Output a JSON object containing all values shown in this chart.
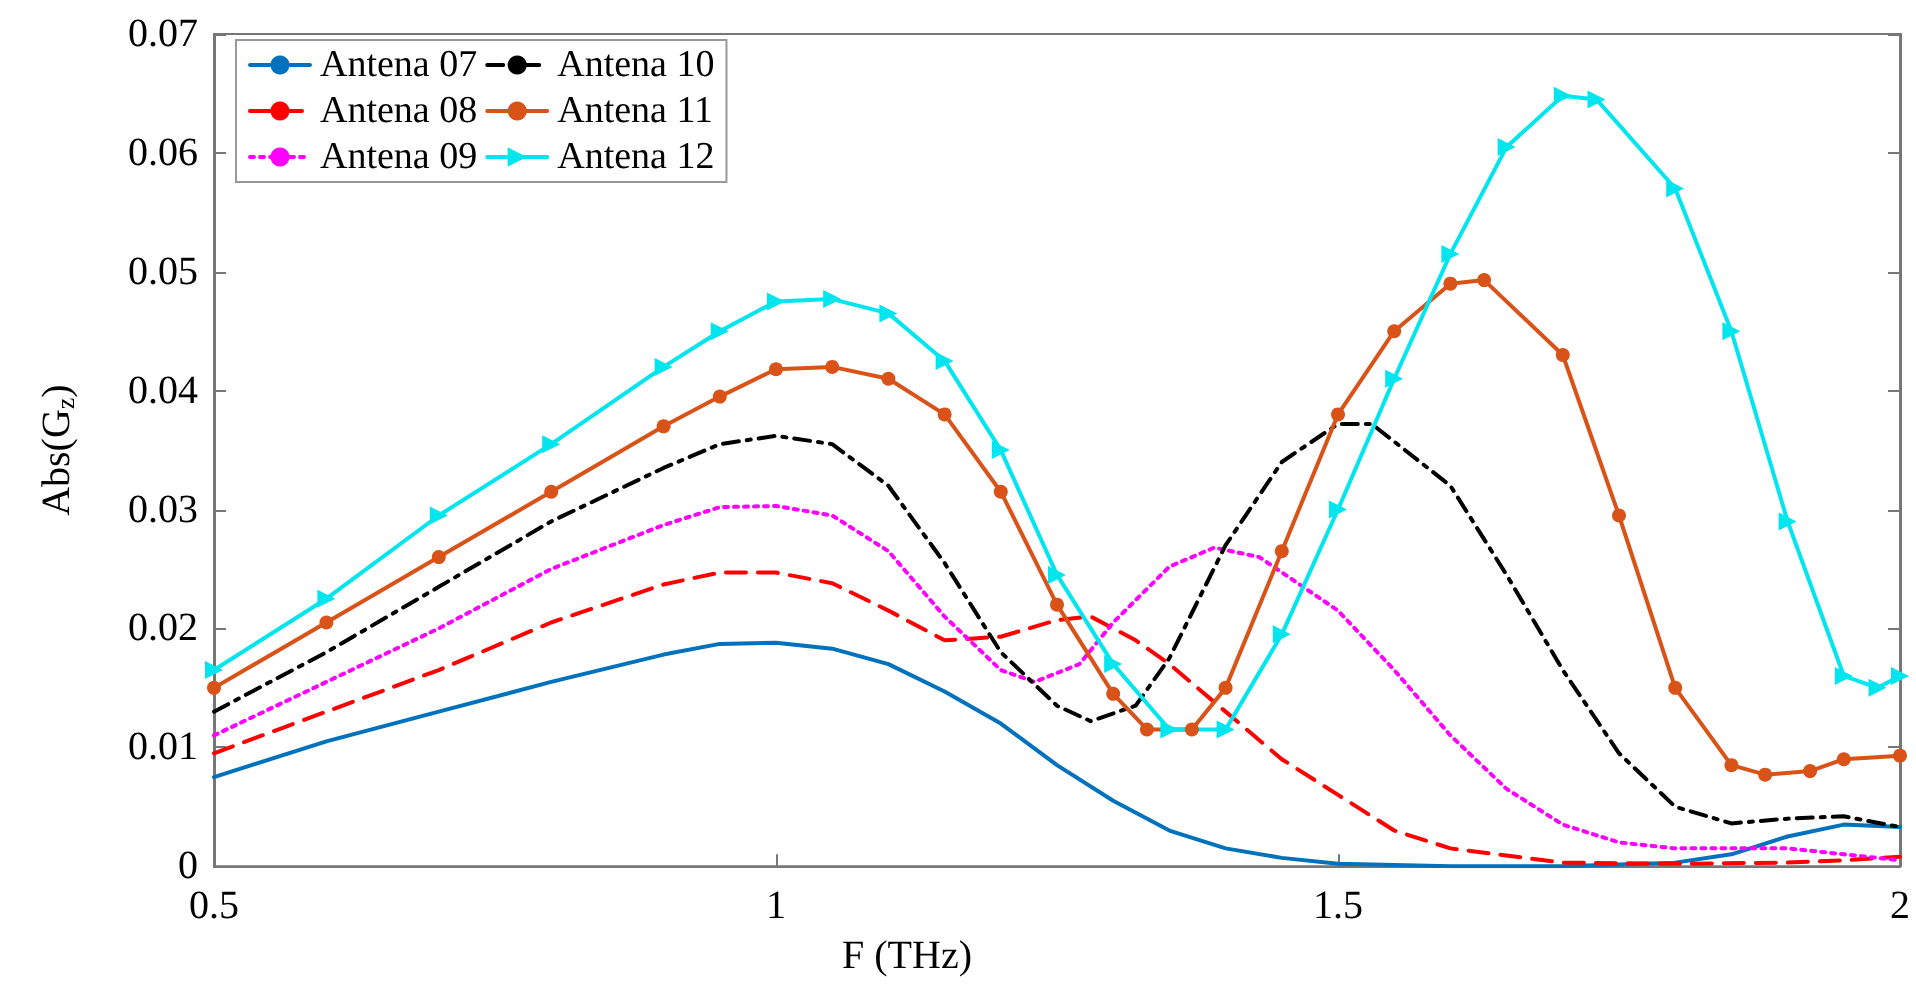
{
  "chart_data": {
    "type": "line",
    "xlabel": "F (THz)",
    "ylabel": "Abs(G$_{z}$)",
    "xlim": [
      0.5,
      2
    ],
    "xticks": [
      0.5,
      1,
      1.5,
      2
    ],
    "ylim": [
      0,
      0.07
    ],
    "yticks": [
      0,
      0.01,
      0.02,
      0.03,
      0.04,
      0.05,
      0.06,
      0.07
    ],
    "grid": false,
    "legend": "top left",
    "series": [
      {
        "name": "Antena 07",
        "color": "#0072bd",
        "line_style": "solid",
        "marker": "none",
        "x": [
          0.5,
          0.6,
          0.7,
          0.8,
          0.9,
          0.95,
          1.0,
          1.05,
          1.1,
          1.15,
          1.2,
          1.25,
          1.3,
          1.35,
          1.4,
          1.45,
          1.5,
          1.6,
          1.7,
          1.8,
          1.85,
          1.9,
          1.95,
          2.0
        ],
        "values": [
          0.0075,
          0.0105,
          0.013,
          0.0155,
          0.0178,
          0.0187,
          0.0188,
          0.0183,
          0.017,
          0.0147,
          0.012,
          0.0085,
          0.0055,
          0.003,
          0.0015,
          0.0007,
          0.0002,
          0,
          0,
          0.0003,
          0.001,
          0.0025,
          0.0035,
          0.0033
        ]
      },
      {
        "name": "Antena 08",
        "color": "#ff0000",
        "line_style": "dashed",
        "marker": "none",
        "x": [
          0.5,
          0.6,
          0.7,
          0.8,
          0.9,
          0.95,
          1.0,
          1.05,
          1.1,
          1.15,
          1.2,
          1.25,
          1.28,
          1.32,
          1.35,
          1.4,
          1.45,
          1.5,
          1.55,
          1.6,
          1.7,
          1.8,
          1.9,
          1.95,
          2.0
        ],
        "values": [
          0.0095,
          0.013,
          0.0165,
          0.0205,
          0.0237,
          0.0247,
          0.0247,
          0.0238,
          0.0215,
          0.019,
          0.0193,
          0.0207,
          0.021,
          0.019,
          0.017,
          0.013,
          0.009,
          0.006,
          0.003,
          0.0015,
          0.0003,
          0.0002,
          0.0003,
          0.0005,
          0.0008
        ]
      },
      {
        "name": "Antena 09",
        "color": "#ff00ff",
        "line_style": "dotted",
        "marker": "none",
        "x": [
          0.5,
          0.6,
          0.7,
          0.8,
          0.9,
          0.95,
          1.0,
          1.05,
          1.1,
          1.15,
          1.2,
          1.23,
          1.27,
          1.3,
          1.35,
          1.39,
          1.43,
          1.5,
          1.55,
          1.6,
          1.65,
          1.7,
          1.75,
          1.8,
          1.85,
          1.9,
          1.95,
          2.0
        ],
        "values": [
          0.011,
          0.0155,
          0.02,
          0.025,
          0.0287,
          0.0302,
          0.0303,
          0.0295,
          0.0265,
          0.021,
          0.0165,
          0.0155,
          0.017,
          0.0205,
          0.0252,
          0.0268,
          0.026,
          0.0215,
          0.0165,
          0.011,
          0.0065,
          0.0035,
          0.002,
          0.0015,
          0.0015,
          0.0015,
          0.001,
          0.0005
        ]
      },
      {
        "name": "Antena 10",
        "color": "#000000",
        "line_style": "dashdot",
        "marker": "none",
        "x": [
          0.5,
          0.6,
          0.7,
          0.8,
          0.9,
          0.95,
          1.0,
          1.05,
          1.1,
          1.15,
          1.2,
          1.25,
          1.28,
          1.32,
          1.35,
          1.4,
          1.45,
          1.5,
          1.53,
          1.6,
          1.65,
          1.7,
          1.75,
          1.8,
          1.85,
          1.9,
          1.95,
          2.0
        ],
        "values": [
          0.013,
          0.018,
          0.0235,
          0.029,
          0.0335,
          0.0355,
          0.0362,
          0.0355,
          0.032,
          0.0255,
          0.018,
          0.0135,
          0.0122,
          0.0135,
          0.0175,
          0.027,
          0.034,
          0.0372,
          0.0372,
          0.032,
          0.0245,
          0.0165,
          0.0095,
          0.005,
          0.0036,
          0.004,
          0.0042,
          0.0033
        ]
      },
      {
        "name": "Antena 11",
        "color": "#d95319",
        "line_style": "solid",
        "marker": "circle",
        "x": [
          0.5,
          0.6,
          0.7,
          0.8,
          0.9,
          0.95,
          1.0,
          1.05,
          1.1,
          1.15,
          1.2,
          1.25,
          1.3,
          1.33,
          1.37,
          1.4,
          1.45,
          1.5,
          1.55,
          1.6,
          1.63,
          1.7,
          1.75,
          1.8,
          1.85,
          1.88,
          1.92,
          1.95,
          2.0
        ],
        "values": [
          0.015,
          0.0205,
          0.026,
          0.0315,
          0.037,
          0.0395,
          0.0418,
          0.042,
          0.041,
          0.038,
          0.0315,
          0.022,
          0.0145,
          0.0115,
          0.0115,
          0.015,
          0.0265,
          0.038,
          0.045,
          0.049,
          0.0493,
          0.043,
          0.0295,
          0.015,
          0.0085,
          0.0077,
          0.008,
          0.009,
          0.0093
        ]
      },
      {
        "name": "Antena 12",
        "color": "#00e5ee",
        "line_style": "solid",
        "marker": "triangle",
        "x": [
          0.5,
          0.6,
          0.7,
          0.8,
          0.9,
          0.95,
          1.0,
          1.05,
          1.1,
          1.15,
          1.2,
          1.25,
          1.3,
          1.35,
          1.4,
          1.45,
          1.5,
          1.55,
          1.6,
          1.65,
          1.7,
          1.73,
          1.8,
          1.85,
          1.9,
          1.95,
          1.98,
          2.0
        ],
        "values": [
          0.0165,
          0.0225,
          0.0295,
          0.0355,
          0.042,
          0.045,
          0.0475,
          0.0477,
          0.0465,
          0.0425,
          0.035,
          0.0245,
          0.017,
          0.0115,
          0.0115,
          0.0195,
          0.03,
          0.041,
          0.0515,
          0.0605,
          0.0648,
          0.0645,
          0.057,
          0.045,
          0.029,
          0.016,
          0.015,
          0.016
        ]
      }
    ]
  }
}
